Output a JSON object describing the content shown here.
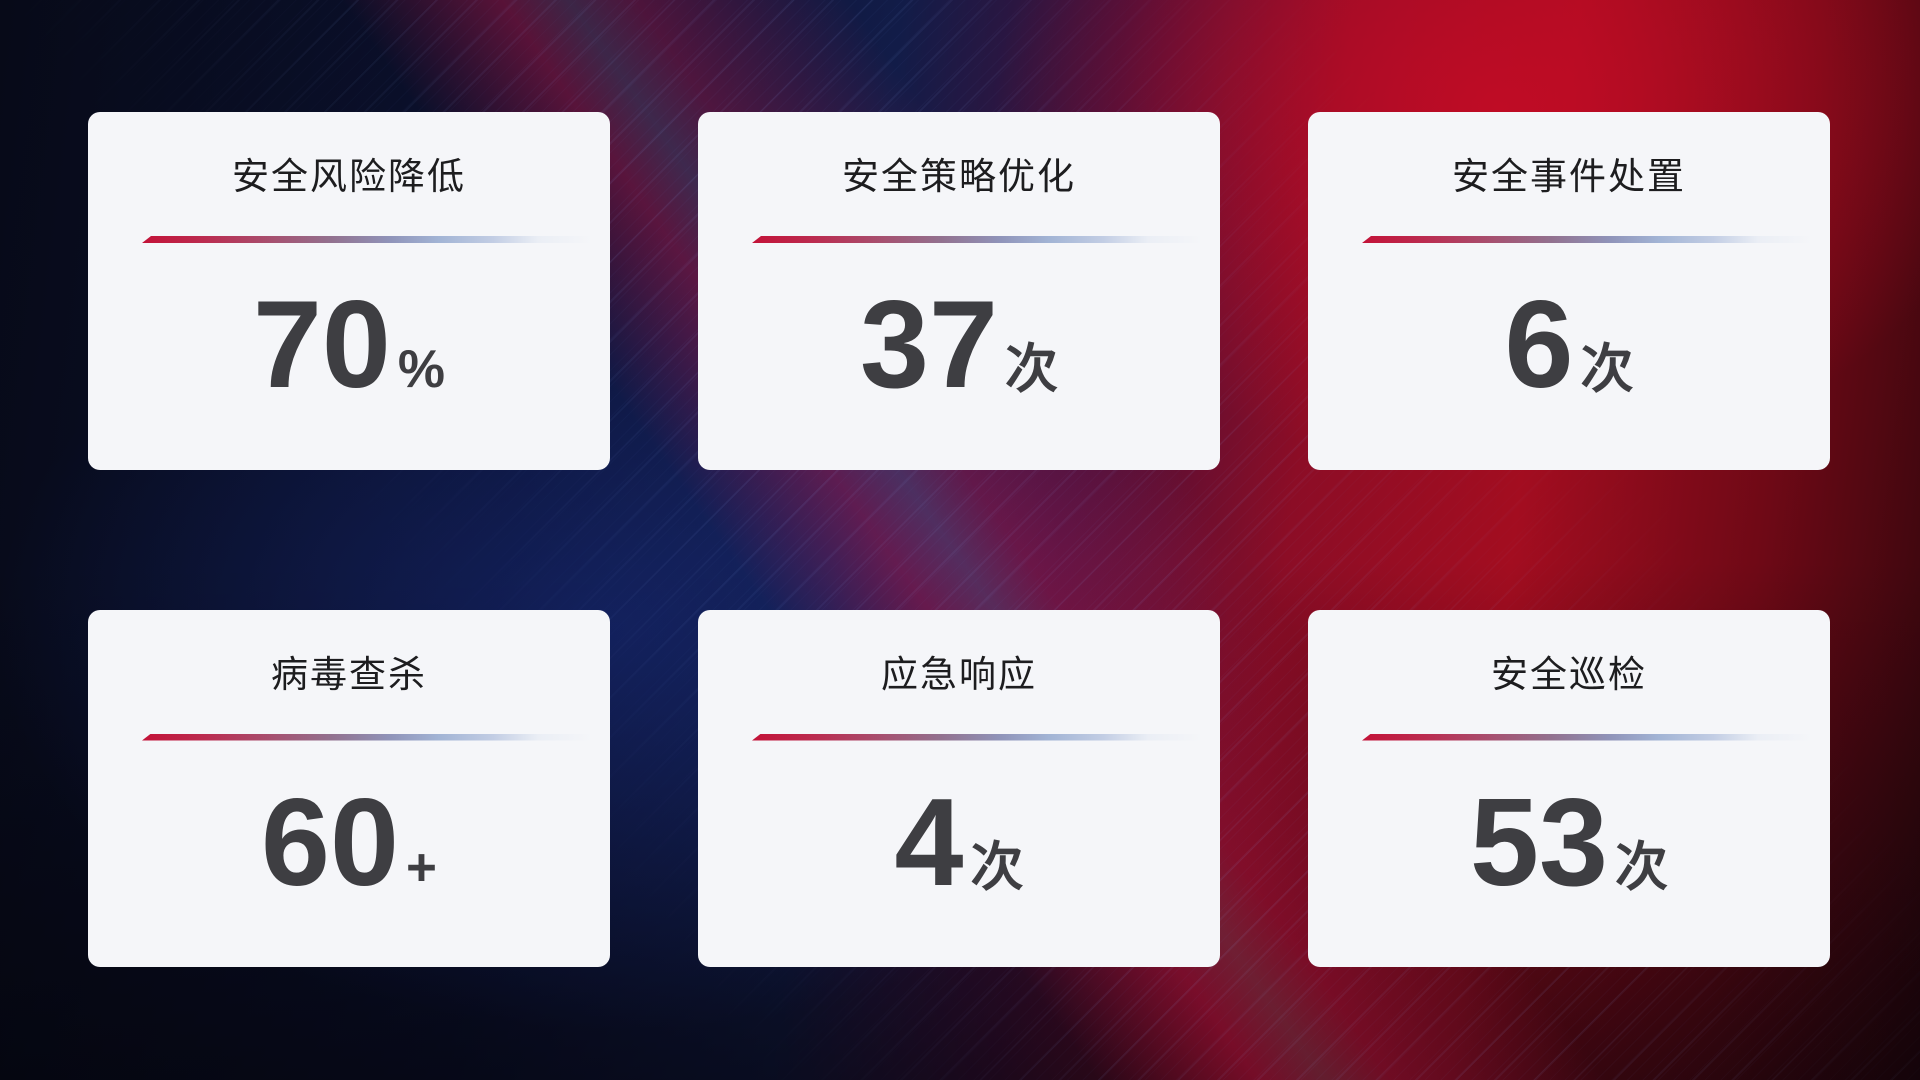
{
  "colors": {
    "accent_red": "#c31238",
    "accent_blue": "#a2b4d5",
    "card_background": "#f5f6f9",
    "title_text": "#1d1d1f",
    "stat_text": "#3e3e42",
    "background_navy": "#0b1130",
    "background_red": "#a30d20"
  },
  "cards": [
    {
      "title": "安全风险降低",
      "value": "70",
      "unit": "%"
    },
    {
      "title": "安全策略优化",
      "value": "37",
      "unit": "次"
    },
    {
      "title": "安全事件处置",
      "value": "6",
      "unit": "次"
    },
    {
      "title": "病毒查杀",
      "value": "60",
      "unit": "+"
    },
    {
      "title": "应急响应",
      "value": "4",
      "unit": "次"
    },
    {
      "title": "安全巡检",
      "value": "53",
      "unit": "次"
    }
  ]
}
